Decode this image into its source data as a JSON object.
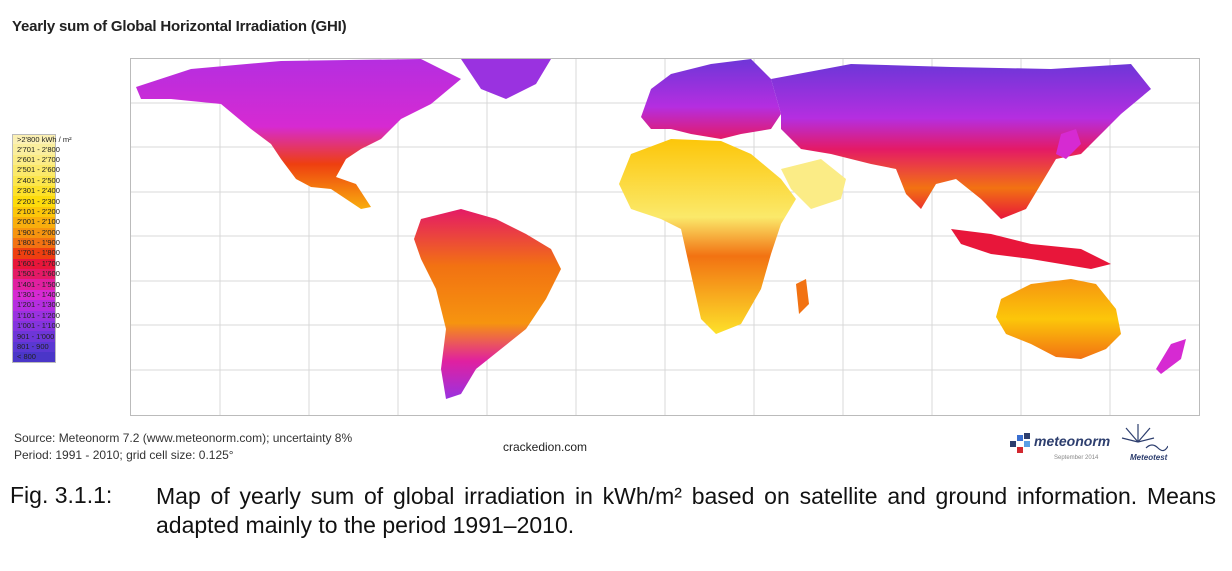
{
  "title": "Yearly sum of Global Horizontal Irradiation (GHI)",
  "legend": {
    "items": [
      {
        "label": ">2'800 kWh / m²",
        "color": "#fbf0b4"
      },
      {
        "label": "2'701 - 2'800",
        "color": "#faee9e"
      },
      {
        "label": "2'601 - 2'700",
        "color": "#fbec86"
      },
      {
        "label": "2'501 - 2'600",
        "color": "#fbe96a"
      },
      {
        "label": "2'401 - 2'500",
        "color": "#fce64c"
      },
      {
        "label": "2'301 - 2'400",
        "color": "#fde12a"
      },
      {
        "label": "2'201 - 2'300",
        "color": "#fddb0c"
      },
      {
        "label": "2'101 - 2'200",
        "color": "#fcc60a"
      },
      {
        "label": "2'001 - 2'100",
        "color": "#f9ae0d"
      },
      {
        "label": "1'901 - 2'000",
        "color": "#f6940f"
      },
      {
        "label": "1'801 - 1'900",
        "color": "#f27212"
      },
      {
        "label": "1'701 - 1'800",
        "color": "#ee3f10"
      },
      {
        "label": "1'601 - 1'700",
        "color": "#e8163a"
      },
      {
        "label": "1'501 - 1'600",
        "color": "#e41a66"
      },
      {
        "label": "1'401 - 1'500",
        "color": "#e020a0"
      },
      {
        "label": "1'301 - 1'400",
        "color": "#d62ad2"
      },
      {
        "label": "1'201 - 1'300",
        "color": "#b52ee0"
      },
      {
        "label": "1'101 - 1'200",
        "color": "#9a32e0"
      },
      {
        "label": "1'001 - 1'100",
        "color": "#8434de"
      },
      {
        "label": "901 - 1'000",
        "color": "#6e36d8"
      },
      {
        "label": "801 - 900",
        "color": "#5a38d2"
      },
      {
        "label": "< 800",
        "color": "#4a36c8"
      }
    ]
  },
  "source": {
    "line1": "Source: Meteonorm 7.2 (www.meteonorm.com); uncertainty 8%",
    "line2": "Period: 1991 - 2010; grid cell size: 0.125°"
  },
  "watermark": "crackedion.com",
  "logos": {
    "meteonorm": "meteonorm",
    "meteonorm_date": "September 2014",
    "meteotest": "Meteotest"
  },
  "caption": {
    "number": "Fig. 3.1.1:",
    "text": "Map of yearly sum of global irradiation in kWh/m² based on satellite and ground information. Means adapted mainly to the period 1991–2010."
  },
  "map": {
    "region_icons": [
      "north-america-region",
      "south-america-region",
      "europe-region",
      "africa-region",
      "asia-region",
      "australia-region"
    ]
  }
}
